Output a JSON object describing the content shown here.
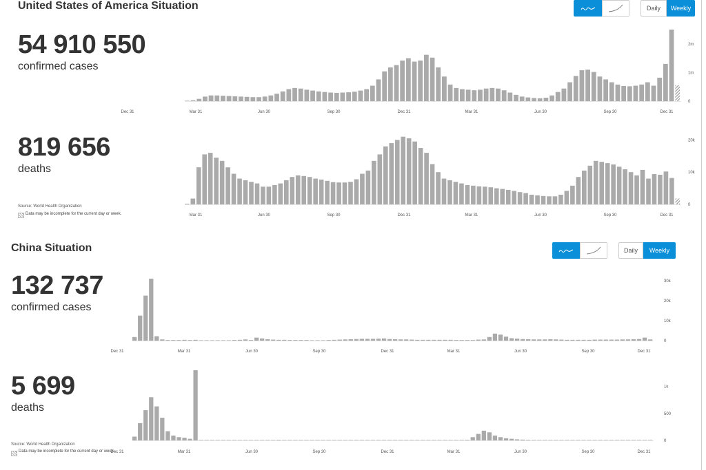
{
  "usa": {
    "title": "United States of America Situation",
    "cases_number": "54 910 550",
    "cases_label": "confirmed cases",
    "deaths_number": "819 656",
    "deaths_label": "deaths",
    "source": "Source: World Health Organization",
    "note": "Data may be incomplete for the current day or week.",
    "toggle": {
      "daily": "Daily",
      "weekly": "Weekly",
      "selected_period": "Weekly",
      "selected_scale": "linear"
    }
  },
  "china": {
    "title": "China Situation",
    "cases_number": "132 737",
    "cases_label": "confirmed cases",
    "deaths_number": "5 699",
    "deaths_label": "deaths",
    "source": "Source: World Health Organization",
    "note": "Data may be incomplete for the current day or week.",
    "toggle": {
      "daily": "Daily",
      "weekly": "Weekly",
      "selected_period": "Weekly",
      "selected_scale": "linear"
    }
  },
  "colors": {
    "bar": "#aaaaaa",
    "accent": "#0a8fd8",
    "axis": "#cccccc"
  },
  "icons": {
    "linear_scale": "squiggle-line-icon",
    "log_scale": "curve-line-icon"
  },
  "chart_data": [
    {
      "id": "usa-cases",
      "type": "bar",
      "x_tick_labels": [
        "Dec 31",
        "Mar 31",
        "Jun 30",
        "Sep 30",
        "Dec 31",
        "Mar 31",
        "Jun 30",
        "Sep 30",
        "Dec 31"
      ],
      "y_tick_labels": [
        "0",
        "1m",
        "2m"
      ],
      "y_ticks": [
        0,
        1000000,
        2000000
      ],
      "ylim": [
        0,
        2500000
      ],
      "values": [
        10000,
        30000,
        80000,
        160000,
        200000,
        200000,
        190000,
        180000,
        170000,
        160000,
        150000,
        140000,
        140000,
        160000,
        200000,
        260000,
        340000,
        420000,
        460000,
        440000,
        400000,
        370000,
        340000,
        320000,
        300000,
        290000,
        300000,
        310000,
        330000,
        370000,
        420000,
        540000,
        760000,
        1040000,
        1180000,
        1260000,
        1420000,
        1500000,
        1380000,
        1420000,
        1620000,
        1520000,
        1180000,
        860000,
        580000,
        460000,
        420000,
        400000,
        380000,
        400000,
        440000,
        460000,
        440000,
        380000,
        300000,
        220000,
        160000,
        130000,
        110000,
        100000,
        120000,
        200000,
        320000,
        440000,
        660000,
        880000,
        1080000,
        1100000,
        1020000,
        860000,
        760000,
        660000,
        580000,
        530000,
        520000,
        540000,
        580000,
        660000,
        540000,
        820000,
        1300000,
        2500000,
        560000
      ],
      "partial_last": true
    },
    {
      "id": "usa-deaths",
      "type": "bar",
      "x_tick_labels": [
        "Mar 31",
        "Jun 30",
        "Sep 30",
        "Dec 31",
        "Mar 31",
        "Jun 30",
        "Sep 30",
        "Dec 31"
      ],
      "y_tick_labels": [
        "0",
        "10k",
        "20k"
      ],
      "y_ticks": [
        0,
        10000,
        20000
      ],
      "ylim": [
        0,
        22000
      ],
      "values": [
        200,
        1800,
        11500,
        15500,
        16000,
        14500,
        13500,
        11500,
        9500,
        8000,
        7500,
        7000,
        6500,
        5500,
        5500,
        6000,
        6500,
        7500,
        8500,
        9000,
        8800,
        8500,
        8000,
        7700,
        7300,
        6900,
        6800,
        6800,
        7000,
        7800,
        9500,
        10500,
        13500,
        15500,
        18000,
        19000,
        20000,
        21000,
        20500,
        19500,
        17500,
        16000,
        12500,
        10000,
        8000,
        7500,
        7000,
        6500,
        6000,
        5800,
        5600,
        5500,
        5300,
        5000,
        4800,
        4500,
        4200,
        3800,
        3500,
        3000,
        2800,
        2600,
        2500,
        2500,
        3000,
        4200,
        5800,
        8500,
        10500,
        12000,
        13500,
        13200,
        12800,
        12400,
        11700,
        10900,
        10000,
        9000,
        10700,
        8000,
        9400,
        9200,
        10200,
        8200,
        1800
      ],
      "partial_last": true
    },
    {
      "id": "china-cases",
      "type": "bar",
      "x_tick_labels": [
        "Dec 31",
        "Mar 31",
        "Jun 30",
        "Sep 30",
        "Dec 31",
        "Mar 31",
        "Jun 30",
        "Sep 30",
        "Dec 31"
      ],
      "y_tick_labels": [
        "0",
        "10k",
        "20k",
        "30k"
      ],
      "y_ticks": [
        0,
        10000,
        20000,
        30000
      ],
      "ylim": [
        0,
        32000
      ],
      "values": [
        1800,
        12500,
        22500,
        31000,
        2200,
        600,
        300,
        300,
        300,
        400,
        300,
        400,
        200,
        150,
        100,
        100,
        150,
        200,
        300,
        400,
        600,
        300,
        1500,
        1100,
        700,
        500,
        400,
        400,
        300,
        300,
        300,
        300,
        200,
        200,
        200,
        300,
        400,
        500,
        600,
        700,
        800,
        900,
        900,
        900,
        1000,
        1100,
        800,
        700,
        600,
        600,
        500,
        400,
        400,
        400,
        400,
        400,
        400,
        400,
        300,
        300,
        300,
        300,
        500,
        600,
        1800,
        3500,
        3000,
        2000,
        1200,
        1000,
        800,
        700,
        600,
        600,
        600,
        700,
        600,
        500,
        400,
        400,
        400,
        400,
        400,
        500,
        500,
        500,
        500,
        500,
        600,
        600,
        700,
        800,
        1500,
        600
      ],
      "partial_last": false
    },
    {
      "id": "china-deaths",
      "type": "bar",
      "x_tick_labels": [
        "Dec 31",
        "Mar 31",
        "Jun 30",
        "Sep 30",
        "Dec 31",
        "Mar 31",
        "Jun 30",
        "Sep 30",
        "Dec 31"
      ],
      "y_tick_labels": [
        "0",
        "500",
        "1k"
      ],
      "y_ticks": [
        0,
        500,
        1000
      ],
      "ylim": [
        0,
        1300
      ],
      "values": [
        70,
        320,
        560,
        800,
        630,
        420,
        170,
        90,
        60,
        50,
        30,
        1300,
        5,
        3,
        2,
        1,
        1,
        1,
        1,
        1,
        1,
        2,
        3,
        5,
        6,
        8,
        10,
        8,
        6,
        4,
        3,
        2,
        2,
        2,
        2,
        2,
        2,
        2,
        3,
        4,
        5,
        6,
        7,
        6,
        5,
        4,
        3,
        2,
        2,
        2,
        2,
        2,
        2,
        2,
        2,
        3,
        4,
        5,
        6,
        8,
        10,
        60,
        120,
        180,
        150,
        90,
        60,
        40,
        30,
        20,
        15,
        10,
        8,
        6,
        5,
        4,
        3,
        2,
        2,
        2,
        1,
        1,
        1,
        1,
        1,
        1,
        1,
        1,
        1,
        1,
        1,
        1,
        1,
        1
      ],
      "partial_last": false
    }
  ]
}
